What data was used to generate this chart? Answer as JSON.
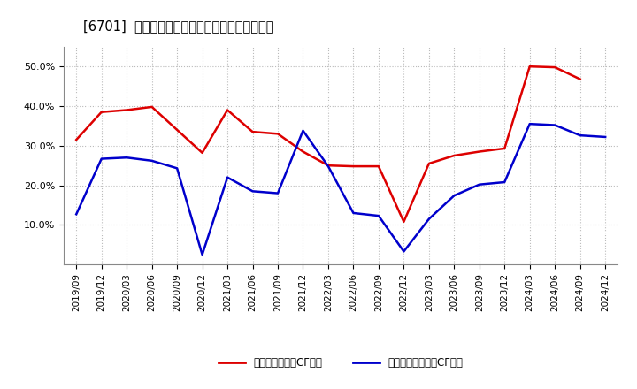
{
  "title": "[6701]  有利子負債キャッシュフロー比率の推移",
  "x_labels": [
    "2019/09",
    "2019/12",
    "2020/03",
    "2020/06",
    "2020/09",
    "2020/12",
    "2021/03",
    "2021/06",
    "2021/09",
    "2021/12",
    "2022/03",
    "2022/06",
    "2022/09",
    "2022/12",
    "2023/03",
    "2023/06",
    "2023/09",
    "2023/12",
    "2024/03",
    "2024/06",
    "2024/09",
    "2024/12"
  ],
  "red_values": [
    0.315,
    0.385,
    0.39,
    0.398,
    0.34,
    0.282,
    0.39,
    0.335,
    0.33,
    0.285,
    0.25,
    0.248,
    0.248,
    0.108,
    0.255,
    0.275,
    0.285,
    0.293,
    0.5,
    0.498,
    0.468,
    null
  ],
  "blue_values": [
    0.127,
    0.267,
    0.27,
    0.262,
    0.243,
    0.025,
    0.22,
    0.185,
    0.18,
    0.338,
    0.248,
    0.13,
    0.123,
    0.033,
    0.115,
    0.174,
    0.202,
    0.208,
    0.355,
    0.352,
    0.326,
    0.322
  ],
  "red_color": "#dd0000",
  "blue_color": "#0000cc",
  "background_color": "#ffffff",
  "grid_color": "#aaaaaa",
  "legend_red": "有利子負債営業CF比率",
  "legend_blue": "有利子負債フリーCF比率",
  "ylim": [
    0.0,
    0.55
  ],
  "yticks": [
    0.1,
    0.2,
    0.3,
    0.4,
    0.5
  ]
}
